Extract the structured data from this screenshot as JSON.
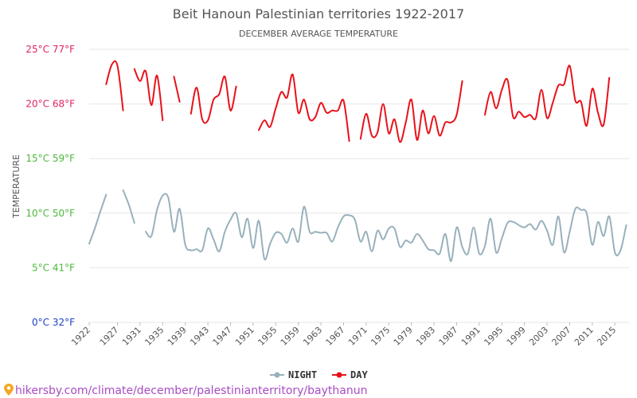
{
  "chart_data": {
    "type": "line",
    "title": "Beit Hanoun Palestinian territories 1922-2017",
    "subtitle": "DECEMBER AVERAGE TEMPERATURE",
    "ylabel": "TEMPERATURE",
    "ylim": [
      0,
      25
    ],
    "y_ticks": [
      {
        "value": 25,
        "label": "25°C 77°F",
        "color": "#e0245e"
      },
      {
        "value": 20,
        "label": "20°C 68°F",
        "color": "#e0245e"
      },
      {
        "value": 15,
        "label": "15°C 59°F",
        "color": "#4bb83a"
      },
      {
        "value": 10,
        "label": "10°C 50°F",
        "color": "#4bb83a"
      },
      {
        "value": 5,
        "label": "5°C 41°F",
        "color": "#4bb83a"
      },
      {
        "value": 0,
        "label": "0°C 32°F",
        "color": "#1f3fc4"
      }
    ],
    "x_range": [
      1922,
      2017
    ],
    "x_tick_labels": [
      "1922",
      "1927",
      "1931",
      "1935",
      "1939",
      "1943",
      "1947",
      "1951",
      "1955",
      "1959",
      "1963",
      "1967",
      "1971",
      "1975",
      "1979",
      "1983",
      "1987",
      "1991",
      "1995",
      "1999",
      "2003",
      "2007",
      "2011",
      "2015"
    ],
    "grid": true,
    "legend_position": "bottom",
    "series": [
      {
        "name": "NIGHT",
        "color": "#98b1bb",
        "points": [
          [
            1922,
            7.2
          ],
          [
            1923,
            8.6
          ],
          [
            1924,
            10.2
          ],
          [
            1925,
            11.7
          ],
          null,
          [
            1928,
            12.1
          ],
          [
            1929,
            10.8
          ],
          [
            1930,
            9.1
          ],
          null,
          [
            1932,
            8.3
          ],
          [
            1933,
            7.9
          ],
          [
            1934,
            10.3
          ],
          [
            1935,
            11.6
          ],
          [
            1936,
            11.4
          ],
          [
            1937,
            8.3
          ],
          [
            1938,
            10.4
          ],
          [
            1939,
            7.1
          ],
          [
            1940,
            6.6
          ],
          [
            1941,
            6.7
          ],
          [
            1942,
            6.6
          ],
          [
            1943,
            8.6
          ],
          [
            1944,
            7.6
          ],
          [
            1945,
            6.5
          ],
          [
            1946,
            8.3
          ],
          [
            1947,
            9.4
          ],
          [
            1948,
            10.0
          ],
          [
            1949,
            7.8
          ],
          [
            1950,
            9.5
          ],
          [
            1951,
            6.8
          ],
          [
            1952,
            9.3
          ],
          [
            1953,
            5.8
          ],
          [
            1954,
            7.2
          ],
          [
            1955,
            8.2
          ],
          [
            1956,
            8.1
          ],
          [
            1957,
            7.3
          ],
          [
            1958,
            8.6
          ],
          [
            1959,
            7.4
          ],
          [
            1960,
            10.6
          ],
          [
            1961,
            8.3
          ],
          [
            1962,
            8.3
          ],
          [
            1963,
            8.2
          ],
          [
            1964,
            8.2
          ],
          [
            1965,
            7.4
          ],
          [
            1966,
            8.7
          ],
          [
            1967,
            9.7
          ],
          [
            1968,
            9.8
          ],
          [
            1969,
            9.4
          ],
          [
            1970,
            7.4
          ],
          [
            1971,
            8.3
          ],
          [
            1972,
            6.5
          ],
          [
            1973,
            8.4
          ],
          [
            1974,
            7.6
          ],
          [
            1975,
            8.6
          ],
          [
            1976,
            8.6
          ],
          [
            1977,
            6.9
          ],
          [
            1978,
            7.5
          ],
          [
            1979,
            7.3
          ],
          [
            1980,
            8.1
          ],
          [
            1981,
            7.5
          ],
          [
            1982,
            6.7
          ],
          [
            1983,
            6.6
          ],
          [
            1984,
            6.3
          ],
          [
            1985,
            8.1
          ],
          [
            1986,
            5.6
          ],
          [
            1987,
            8.7
          ],
          [
            1988,
            6.9
          ],
          [
            1989,
            6.3
          ],
          [
            1990,
            8.7
          ],
          [
            1991,
            6.3
          ],
          [
            1992,
            7.0
          ],
          [
            1993,
            9.5
          ],
          [
            1994,
            6.4
          ],
          [
            1995,
            7.7
          ],
          [
            1996,
            9.1
          ],
          [
            1997,
            9.2
          ],
          [
            1998,
            8.9
          ],
          [
            1999,
            8.7
          ],
          [
            2000,
            9.0
          ],
          [
            2001,
            8.5
          ],
          [
            2002,
            9.3
          ],
          [
            2003,
            8.4
          ],
          [
            2004,
            7.1
          ],
          [
            2005,
            9.7
          ],
          [
            2006,
            6.4
          ],
          [
            2007,
            8.3
          ],
          [
            2008,
            10.4
          ],
          [
            2009,
            10.3
          ],
          [
            2010,
            10.0
          ],
          [
            2011,
            7.1
          ],
          [
            2012,
            9.2
          ],
          [
            2013,
            7.9
          ],
          [
            2014,
            9.7
          ],
          [
            2015,
            6.4
          ],
          [
            2016,
            6.6
          ],
          [
            2017,
            8.9
          ]
        ]
      },
      {
        "name": "DAY",
        "color": "#e8121a",
        "points": [
          [
            1925,
            21.8
          ],
          [
            1926,
            23.6
          ],
          [
            1927,
            23.5
          ],
          [
            1928,
            19.4
          ],
          null,
          [
            1930,
            23.2
          ],
          [
            1931,
            22.1
          ],
          [
            1932,
            23.0
          ],
          [
            1933,
            19.9
          ],
          [
            1934,
            22.6
          ],
          [
            1935,
            18.5
          ],
          null,
          [
            1937,
            22.5
          ],
          [
            1938,
            20.2
          ],
          null,
          [
            1940,
            19.1
          ],
          [
            1941,
            21.5
          ],
          [
            1942,
            18.6
          ],
          [
            1943,
            18.5
          ],
          [
            1944,
            20.4
          ],
          [
            1945,
            20.9
          ],
          [
            1946,
            22.5
          ],
          [
            1947,
            19.4
          ],
          [
            1948,
            21.6
          ],
          null,
          [
            1952,
            17.6
          ],
          [
            1953,
            18.5
          ],
          [
            1954,
            17.9
          ],
          [
            1955,
            19.6
          ],
          [
            1956,
            21.1
          ],
          [
            1957,
            20.6
          ],
          [
            1958,
            22.7
          ],
          [
            1959,
            19.2
          ],
          [
            1960,
            20.4
          ],
          [
            1961,
            18.6
          ],
          [
            1962,
            18.8
          ],
          [
            1963,
            20.1
          ],
          [
            1964,
            19.2
          ],
          [
            1965,
            19.4
          ],
          [
            1966,
            19.4
          ],
          [
            1967,
            20.3
          ],
          [
            1968,
            16.6
          ],
          null,
          [
            1970,
            16.8
          ],
          [
            1971,
            19.1
          ],
          [
            1972,
            17.1
          ],
          [
            1973,
            17.4
          ],
          [
            1974,
            20.0
          ],
          [
            1975,
            17.3
          ],
          [
            1976,
            18.6
          ],
          [
            1977,
            16.5
          ],
          [
            1978,
            18.3
          ],
          [
            1979,
            20.4
          ],
          [
            1980,
            16.7
          ],
          [
            1981,
            19.4
          ],
          [
            1982,
            17.3
          ],
          [
            1983,
            18.9
          ],
          [
            1984,
            17.1
          ],
          [
            1985,
            18.3
          ],
          [
            1986,
            18.3
          ],
          [
            1987,
            19.0
          ],
          [
            1988,
            22.1
          ],
          null,
          [
            1992,
            19.0
          ],
          [
            1993,
            21.1
          ],
          [
            1994,
            19.6
          ],
          [
            1995,
            21.3
          ],
          [
            1996,
            22.2
          ],
          [
            1997,
            18.8
          ],
          [
            1998,
            19.3
          ],
          [
            1999,
            18.8
          ],
          [
            2000,
            19.0
          ],
          [
            2001,
            18.7
          ],
          [
            2002,
            21.3
          ],
          [
            2003,
            18.7
          ],
          [
            2004,
            20.1
          ],
          [
            2005,
            21.7
          ],
          [
            2006,
            21.8
          ],
          [
            2007,
            23.5
          ],
          [
            2008,
            20.3
          ],
          [
            2009,
            20.2
          ],
          [
            2010,
            18.0
          ],
          [
            2011,
            21.4
          ],
          [
            2012,
            19.2
          ],
          [
            2013,
            18.1
          ],
          [
            2014,
            22.4
          ]
        ]
      }
    ]
  },
  "footer": {
    "text": "hikersby.com/climate/december/palestinianterritory/baythanun",
    "pin_icon": "location-pin-icon"
  }
}
